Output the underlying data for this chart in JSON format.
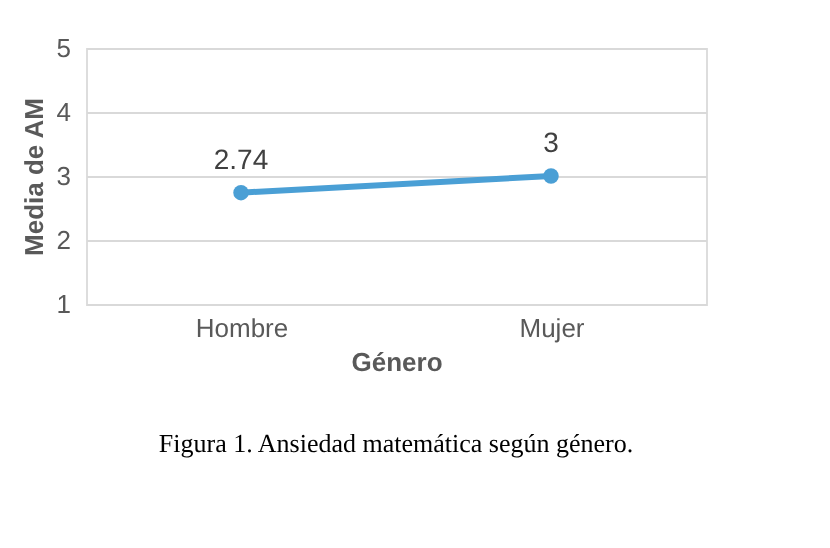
{
  "chart_data": {
    "type": "line",
    "xlabel": "Género",
    "ylabel": "Media de AM",
    "categories": [
      "Hombre",
      "Mujer"
    ],
    "series": [
      {
        "color": "#4a9fd5",
        "values": [
          2.74,
          3
        ]
      }
    ],
    "ylim": [
      1,
      5
    ],
    "yticks": [
      1,
      2,
      3,
      4,
      5
    ],
    "grid": "y",
    "marker": "circle",
    "line_style": "solid",
    "data_labels": true,
    "legend": false,
    "annotations": [
      "Figura 1. Ansiedad matemática según género."
    ]
  }
}
